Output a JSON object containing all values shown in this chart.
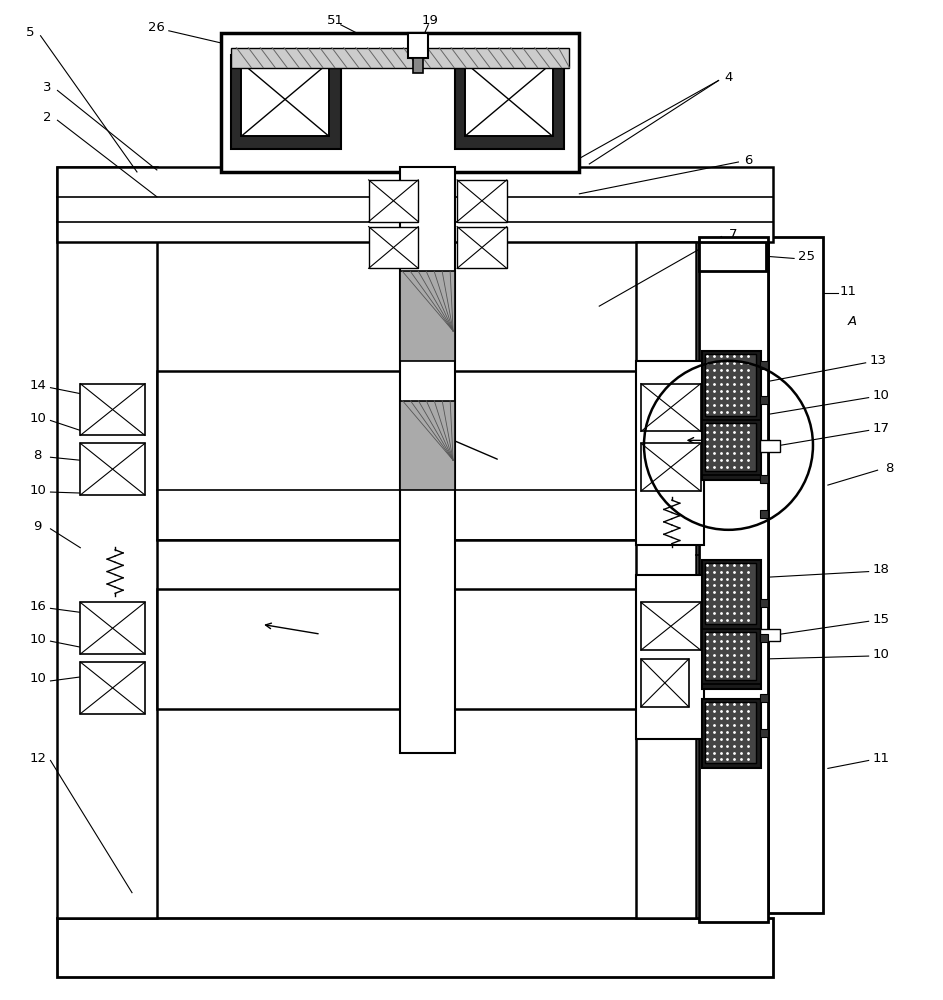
{
  "bg_color": "#ffffff",
  "line_color": "#000000",
  "fig_width": 9.43,
  "fig_height": 10.0
}
